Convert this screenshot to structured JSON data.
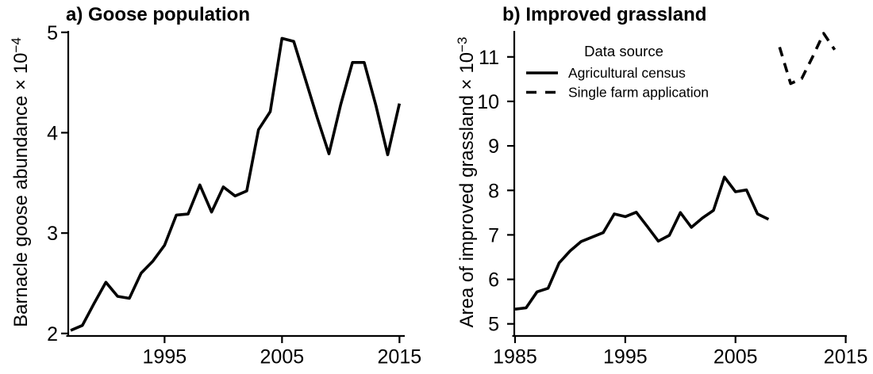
{
  "figure": {
    "background_color": "#ffffff",
    "line_color": "#000000"
  },
  "chart_data": [
    {
      "type": "line",
      "panel": "a",
      "title": "a) Goose population",
      "ylabel": {
        "text": "Barnacle goose abundance × 10",
        "superscript": "−4"
      },
      "xlabel": "",
      "grid": "off",
      "x_axis": {
        "range": [
          1986.8,
          2015.45
        ],
        "ticks": [
          1995,
          2005,
          2015
        ],
        "tick_labels": [
          "1995",
          "2005",
          "2015"
        ]
      },
      "y_axis": {
        "range": [
          1.975,
          5.03
        ],
        "ticks": [
          2,
          3,
          4,
          5
        ],
        "tick_labels": [
          "2",
          "3",
          "4",
          "5"
        ]
      },
      "series": [
        {
          "name": "Barnacle goose abundance",
          "style": "solid",
          "x": [
            1987,
            1988,
            1989,
            1990,
            1991,
            1992,
            1993,
            1994,
            1995,
            1996,
            1997,
            1998,
            1999,
            2000,
            2001,
            2002,
            2003,
            2004,
            2005,
            2006,
            2007,
            2008,
            2009,
            2010,
            2011,
            2012,
            2013,
            2014,
            2015
          ],
          "y": [
            2.03,
            2.08,
            2.3,
            2.51,
            2.37,
            2.35,
            2.6,
            2.72,
            2.88,
            3.18,
            3.19,
            3.48,
            3.21,
            3.46,
            3.37,
            3.42,
            4.03,
            4.21,
            4.94,
            4.91,
            4.53,
            4.15,
            3.79,
            4.28,
            4.7,
            4.7,
            4.27,
            3.78,
            4.29
          ]
        }
      ]
    },
    {
      "type": "line",
      "panel": "b",
      "title": "b) Improved grassland",
      "ylabel": {
        "text": "Area of improved grassland × 10",
        "superscript": "−3"
      },
      "xlabel": "",
      "grid": "off",
      "legend": {
        "title": "Data source",
        "position": "top-left-inside",
        "entries": [
          {
            "label": "Agricultural census",
            "style": "solid"
          },
          {
            "label": "Single farm application",
            "style": "dashed"
          }
        ]
      },
      "x_axis": {
        "range": [
          1984.93,
          2015.1
        ],
        "ticks": [
          1985,
          1995,
          2005,
          2015
        ],
        "tick_labels": [
          "1985",
          "1995",
          "2005",
          "2015"
        ]
      },
      "y_axis": {
        "range": [
          4.728,
          11.62
        ],
        "ticks": [
          5,
          6,
          7,
          8,
          9,
          10,
          11
        ],
        "tick_labels": [
          "5",
          "6",
          "7",
          "8",
          "9",
          "10",
          "11"
        ]
      },
      "series": [
        {
          "name": "Agricultural census",
          "style": "solid",
          "x": [
            1985,
            1986,
            1987,
            1988,
            1989,
            1990,
            1991,
            1992,
            1993,
            1994,
            1995,
            1996,
            1997,
            1998,
            1999,
            2000,
            2001,
            2002,
            2003,
            2004,
            2005,
            2006,
            2007,
            2008
          ],
          "y": [
            5.33,
            5.36,
            5.72,
            5.8,
            6.37,
            6.64,
            6.85,
            6.95,
            7.05,
            7.47,
            7.41,
            7.51,
            7.19,
            6.86,
            6.99,
            7.5,
            7.17,
            7.38,
            7.55,
            8.3,
            7.97,
            8.01,
            7.47,
            7.35
          ]
        },
        {
          "name": "Single farm application",
          "style": "dashed",
          "x": [
            2009,
            2010,
            2011,
            2012,
            2013,
            2014
          ],
          "y": [
            11.22,
            10.4,
            10.51,
            11.0,
            11.53,
            11.16
          ]
        }
      ]
    }
  ]
}
